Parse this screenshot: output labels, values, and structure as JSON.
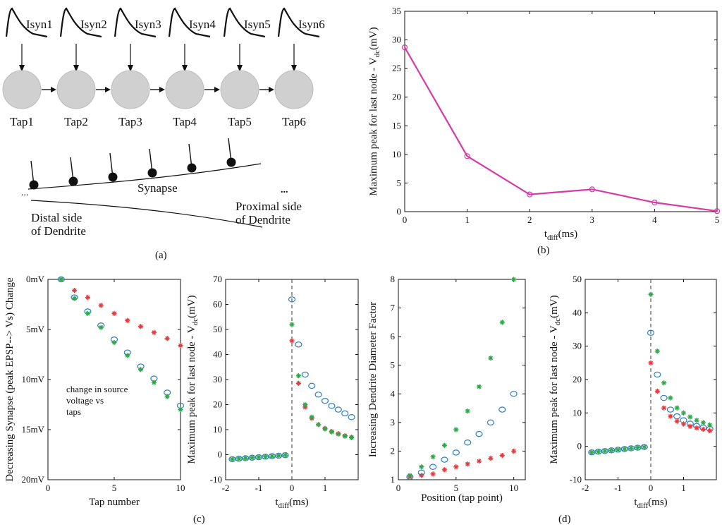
{
  "panel_labels": {
    "a": "(a)",
    "b": "(b)",
    "c": "(c)",
    "d": "(d)"
  },
  "diagram_a": {
    "currents": [
      "Isyn1",
      "Isyn2",
      "Isyn3",
      "Isyn4",
      "Isyn5",
      "Isyn6"
    ],
    "taps": [
      "Tap1",
      "Tap2",
      "Tap3",
      "Tap4",
      "Tap5",
      "Tap6"
    ],
    "synapse_label": "Synapse",
    "distal_line1": "Distal side",
    "distal_line2": "of Dendrite",
    "proximal_line1": "Proximal side",
    "proximal_line2": "of Dendrite",
    "ellipsis_left": "...",
    "ellipsis_right": "..."
  },
  "chart_data": [
    {
      "id": "b",
      "type": "line",
      "title": "",
      "ylabel": "Maximum peak for last node - V",
      "ylabel_sub": "dc",
      "ylabel_unit": "(mV)",
      "xlabel": "t",
      "xlabel_sub": "diff",
      "xlabel_unit": "(ms)",
      "xlim": [
        0,
        5
      ],
      "ylim": [
        0,
        35
      ],
      "xticks": [
        "0",
        "1",
        "2",
        "3",
        "4",
        "5"
      ],
      "yticks": [
        "0",
        "5",
        "10",
        "15",
        "20",
        "25",
        "30",
        "35"
      ],
      "series": [
        {
          "name": "peak",
          "color": "#d63aa6",
          "x": [
            0,
            1,
            2,
            3,
            4,
            5
          ],
          "y": [
            28.7,
            9.7,
            3.0,
            3.9,
            1.6,
            0.1
          ]
        }
      ]
    },
    {
      "id": "c1",
      "type": "scatter",
      "title": "",
      "ylabel": "Decreasing Synapse (peak EPSP--> Vs) Change",
      "xlabel": "Tap number",
      "xlim": [
        0,
        10
      ],
      "ylim": [
        0,
        20
      ],
      "y_inverted": true,
      "xticks": [
        "0",
        "5",
        "10"
      ],
      "yticks": [
        "0mV",
        "5mV",
        "10mV",
        "15mV",
        "20mV"
      ],
      "annotation_lines": [
        "change in source",
        "voltage vs",
        "taps"
      ],
      "series": [
        {
          "name": "red",
          "marker": "*",
          "color": "#e8383d",
          "x": [
            1,
            2,
            3,
            4,
            5,
            6,
            7,
            8,
            9,
            10
          ],
          "y": [
            0,
            1.1,
            1.8,
            2.6,
            3.4,
            4.1,
            4.7,
            5.3,
            5.9,
            6.6
          ]
        },
        {
          "name": "blue",
          "marker": "o",
          "color": "#2b7fc1",
          "x": [
            1,
            2,
            3,
            4,
            5,
            6,
            7,
            8,
            9,
            10
          ],
          "y": [
            0,
            1.8,
            3.2,
            4.6,
            6.0,
            7.3,
            8.7,
            9.9,
            11.3,
            12.6
          ]
        },
        {
          "name": "green",
          "marker": "*",
          "color": "#2ea84a",
          "x": [
            1,
            2,
            3,
            4,
            5,
            6,
            7,
            8,
            9,
            10
          ],
          "y": [
            0,
            1.9,
            3.4,
            4.8,
            6.3,
            7.6,
            9.0,
            10.3,
            11.7,
            13.0
          ]
        }
      ]
    },
    {
      "id": "c2",
      "type": "scatter",
      "title": "",
      "ylabel": "Maximum peak for last node - V",
      "ylabel_sub": "dc",
      "ylabel_unit": "(mV)",
      "xlabel": "t",
      "xlabel_sub": "diff",
      "xlabel_unit": "(ms)",
      "xlim": [
        -2,
        2
      ],
      "ylim": [
        -10,
        70
      ],
      "xticks": [
        "-2",
        "-1",
        "0",
        "1"
      ],
      "yticks": [
        "-10",
        "0",
        "10",
        "20",
        "30",
        "40",
        "50",
        "60",
        "70"
      ],
      "series": [
        {
          "name": "blue",
          "marker": "o",
          "color": "#2b7fc1",
          "x": [
            -1.8,
            -1.6,
            -1.4,
            -1.2,
            -1.0,
            -0.8,
            -0.6,
            -0.4,
            -0.2,
            0,
            0.2,
            0.4,
            0.6,
            0.8,
            1.0,
            1.2,
            1.4,
            1.6,
            1.8
          ],
          "y": [
            -1.8,
            -1.6,
            -1.4,
            -1.2,
            -1.0,
            -0.8,
            -0.6,
            -0.4,
            -0.2,
            62,
            44,
            32,
            27.5,
            24,
            21.5,
            19.5,
            18,
            16.5,
            15
          ]
        },
        {
          "name": "red",
          "marker": "*",
          "color": "#e8383d",
          "x": [
            0,
            0.2,
            0.4,
            0.6,
            0.8,
            1.0,
            1.2,
            1.4,
            1.6,
            1.8
          ],
          "y": [
            45.5,
            28.5,
            19,
            14.5,
            12,
            10.5,
            9.3,
            8.4,
            7.6,
            7
          ]
        },
        {
          "name": "green",
          "marker": "*",
          "color": "#2ea84a",
          "x": [
            -1.8,
            -1.6,
            -1.4,
            -1.2,
            -1.0,
            -0.8,
            -0.6,
            -0.4,
            -0.2,
            0,
            0.2,
            0.4,
            0.6,
            0.8,
            1.0,
            1.2,
            1.4,
            1.6,
            1.8
          ],
          "y": [
            -1.8,
            -1.6,
            -1.4,
            -1.2,
            -1.0,
            -0.8,
            -0.6,
            -0.4,
            -0.2,
            52,
            31.5,
            20,
            15,
            12,
            10.3,
            9.1,
            8.2,
            7.4,
            6.8
          ]
        }
      ]
    },
    {
      "id": "c3",
      "type": "scatter",
      "title": "",
      "ylabel": "Increasing Dendrite Diameter Factor",
      "xlabel": "Position (tap point)",
      "xlim": [
        0,
        11
      ],
      "ylim": [
        1,
        8
      ],
      "xticks": [
        "0",
        "5",
        "10"
      ],
      "yticks": [
        "1",
        "2",
        "3",
        "4",
        "5",
        "6",
        "7",
        "8"
      ],
      "series": [
        {
          "name": "red",
          "marker": "*",
          "color": "#e8383d",
          "x": [
            1,
            2,
            3,
            4,
            5,
            6,
            7,
            8,
            9,
            10
          ],
          "y": [
            1.1,
            1.15,
            1.2,
            1.35,
            1.45,
            1.55,
            1.65,
            1.75,
            1.85,
            2.0
          ]
        },
        {
          "name": "blue",
          "marker": "o",
          "color": "#2b7fc1",
          "x": [
            1,
            2,
            3,
            4,
            5,
            6,
            7,
            8,
            9,
            10
          ],
          "y": [
            1.1,
            1.25,
            1.45,
            1.7,
            1.95,
            2.3,
            2.6,
            3.0,
            3.45,
            4.0
          ]
        },
        {
          "name": "green",
          "marker": "*",
          "color": "#2ea84a",
          "x": [
            1,
            2,
            3,
            4,
            5,
            6,
            7,
            8,
            9,
            10
          ],
          "y": [
            1.15,
            1.45,
            1.8,
            2.2,
            2.75,
            3.4,
            4.25,
            5.25,
            6.5,
            8.0
          ]
        }
      ]
    },
    {
      "id": "d",
      "type": "scatter",
      "title": "",
      "ylabel": "Maximum peak for last node - V",
      "ylabel_sub": "dc",
      "ylabel_unit": "(mV)",
      "xlabel": "t",
      "xlabel_sub": "diff",
      "xlabel_unit": "(ms)",
      "xlim": [
        -2,
        2
      ],
      "ylim": [
        -10,
        50
      ],
      "xticks": [
        "-2",
        "-1",
        "0",
        "1"
      ],
      "yticks": [
        "-10",
        "0",
        "10",
        "20",
        "30",
        "40",
        "50"
      ],
      "series": [
        {
          "name": "blue",
          "marker": "o",
          "color": "#2b7fc1",
          "x": [
            -1.8,
            -1.6,
            -1.4,
            -1.2,
            -1.0,
            -0.8,
            -0.6,
            -0.4,
            -0.2,
            0,
            0.2,
            0.4,
            0.6,
            0.8,
            1.0,
            1.2,
            1.4,
            1.6,
            1.8
          ],
          "y": [
            -1.8,
            -1.6,
            -1.4,
            -1.2,
            -1.0,
            -0.8,
            -0.6,
            -0.4,
            -0.2,
            34,
            21.5,
            14.5,
            11,
            9,
            7.8,
            6.8,
            6.1,
            5.6,
            5.2
          ]
        },
        {
          "name": "red",
          "marker": "*",
          "color": "#e8383d",
          "x": [
            0,
            0.2,
            0.4,
            0.6,
            0.8,
            1.0,
            1.2,
            1.4,
            1.6,
            1.8
          ],
          "y": [
            25,
            16.5,
            11.5,
            9,
            7.5,
            6.7,
            6,
            5.5,
            5.1,
            4.7
          ]
        },
        {
          "name": "green",
          "marker": "*",
          "color": "#2ea84a",
          "x": [
            -1.8,
            -1.6,
            -1.4,
            -1.2,
            -1.0,
            -0.8,
            -0.6,
            -0.4,
            -0.2,
            0,
            0.2,
            0.4,
            0.6,
            0.8,
            1.0,
            1.2,
            1.4,
            1.6,
            1.8
          ],
          "y": [
            -1.8,
            -1.6,
            -1.4,
            -1.2,
            -1.0,
            -0.8,
            -0.6,
            -0.4,
            -0.2,
            45.5,
            28.5,
            19,
            14.5,
            11.5,
            10,
            8.8,
            7.8,
            7.1,
            6.4
          ]
        }
      ]
    }
  ]
}
